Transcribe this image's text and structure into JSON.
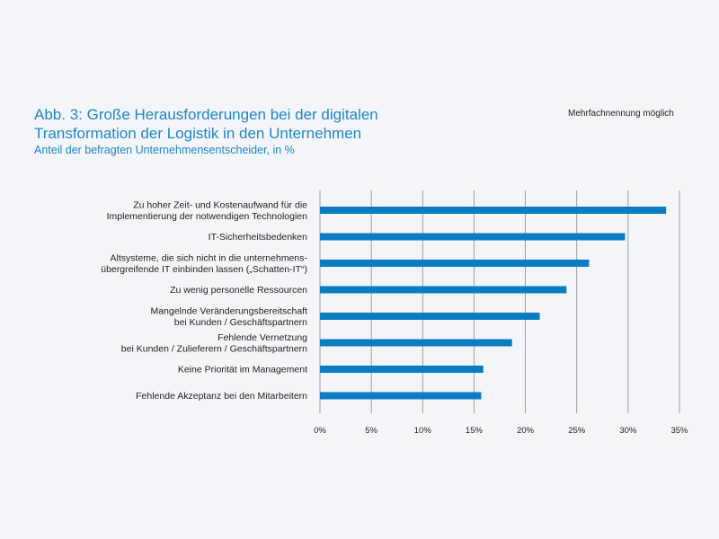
{
  "title": "Abb. 3: Große Herausforderungen bei der digitalen\nTransformation der Logistik in den Unternehmen",
  "subtitle": "Anteil der befragten Unternehmensentscheider, in %",
  "note": "Mehrfachnennung möglich",
  "colors": {
    "bar": "#0a7cc2",
    "grid": "#8a8a8a",
    "accent": "#1f86c6"
  },
  "chart_data": {
    "type": "bar",
    "orientation": "horizontal",
    "title": "Abb. 3: Große Herausforderungen bei der digitalen Transformation der Logistik in den Unternehmen",
    "subtitle": "Anteil der befragten Unternehmensentscheider, in %",
    "categories": [
      "Zu hoher Zeit- und Kostenaufwand für die\nImplementierung der notwendigen Technologien",
      "IT-Sicherheitsbedenken",
      "Altsysteme, die sich nicht in die unternehmens-\nübergreifende IT einbinden lassen („Schatten-IT“)",
      "Zu wenig personelle Ressourcen",
      "Mangelnde Veränderungsbereitschaft\nbei Kunden / Geschäftspartnern",
      "Fehlende Vernetzung\nbei Kunden / Zulieferern / Geschäftspartnern",
      "Keine Priorität im Management",
      "Fehlende Akzeptanz bei den Mitarbeitern"
    ],
    "values": [
      33.7,
      29.7,
      26.2,
      24.0,
      21.4,
      18.7,
      15.9,
      15.7
    ],
    "xlim": [
      0,
      35
    ],
    "ticks": [
      0,
      5,
      10,
      15,
      20,
      25,
      30,
      35
    ],
    "tick_labels": [
      "0%",
      "5%",
      "10%",
      "15%",
      "20%",
      "25%",
      "30%",
      "35%"
    ],
    "grid": true,
    "legend": "none"
  }
}
